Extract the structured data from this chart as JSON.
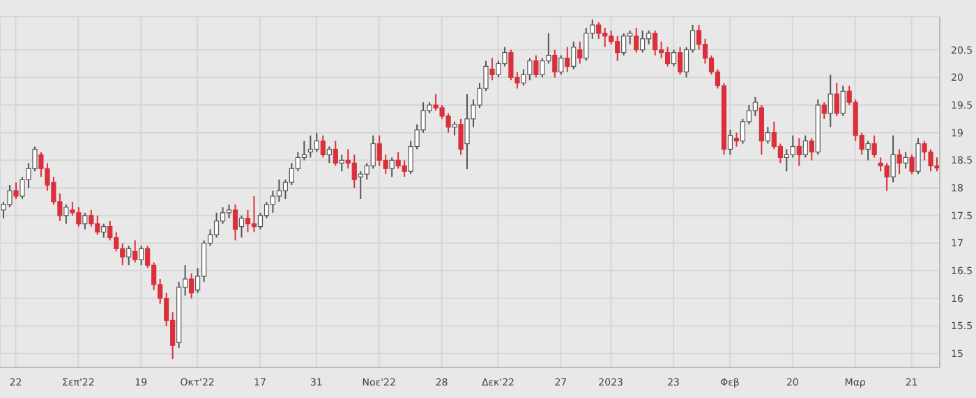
{
  "chart_data": {
    "type": "candlestick",
    "categories": [
      null,
      null,
      "22",
      null,
      null,
      null,
      null,
      null,
      null,
      null,
      null,
      null,
      "Σεπ'22",
      null,
      null,
      null,
      null,
      null,
      null,
      null,
      null,
      null,
      "19",
      null,
      null,
      null,
      null,
      null,
      null,
      null,
      null,
      "Οκτ'22",
      null,
      null,
      null,
      null,
      null,
      null,
      null,
      null,
      null,
      "17",
      null,
      null,
      null,
      null,
      null,
      null,
      null,
      null,
      "31",
      null,
      null,
      null,
      null,
      null,
      null,
      null,
      null,
      null,
      "Νοε'22",
      null,
      null,
      null,
      null,
      null,
      null,
      null,
      null,
      null,
      "28",
      null,
      null,
      null,
      null,
      null,
      null,
      null,
      null,
      "Δεκ'22",
      null,
      null,
      null,
      null,
      null,
      null,
      null,
      null,
      null,
      "27",
      null,
      null,
      null,
      null,
      null,
      null,
      null,
      "2023",
      null,
      null,
      null,
      null,
      null,
      null,
      null,
      null,
      null,
      "23",
      null,
      null,
      null,
      null,
      null,
      null,
      null,
      null,
      "Φεβ",
      null,
      null,
      null,
      null,
      null,
      null,
      null,
      null,
      null,
      "20",
      null,
      null,
      null,
      null,
      null,
      null,
      null,
      null,
      null,
      "Μαρ",
      null,
      null,
      null,
      null,
      null,
      null,
      null,
      null,
      "21",
      null,
      null,
      null,
      null
    ],
    "ohlc": [
      [
        17.6,
        17.75,
        17.45,
        17.7
      ],
      [
        17.7,
        18.05,
        17.65,
        17.95
      ],
      [
        17.95,
        18.1,
        17.8,
        17.85
      ],
      [
        17.85,
        18.2,
        17.8,
        18.15
      ],
      [
        18.15,
        18.45,
        18.0,
        18.35
      ],
      [
        18.35,
        18.75,
        18.3,
        18.7
      ],
      [
        18.6,
        18.65,
        18.2,
        18.35
      ],
      [
        18.35,
        18.45,
        17.95,
        18.05
      ],
      [
        18.1,
        18.2,
        17.7,
        17.75
      ],
      [
        17.75,
        17.9,
        17.4,
        17.5
      ],
      [
        17.5,
        17.7,
        17.35,
        17.65
      ],
      [
        17.6,
        17.75,
        17.5,
        17.55
      ],
      [
        17.55,
        17.65,
        17.3,
        17.35
      ],
      [
        17.35,
        17.55,
        17.25,
        17.5
      ],
      [
        17.5,
        17.6,
        17.3,
        17.35
      ],
      [
        17.35,
        17.5,
        17.15,
        17.2
      ],
      [
        17.2,
        17.35,
        17.1,
        17.3
      ],
      [
        17.3,
        17.4,
        17.05,
        17.1
      ],
      [
        17.1,
        17.2,
        16.85,
        16.9
      ],
      [
        16.9,
        17.0,
        16.6,
        16.75
      ],
      [
        16.75,
        16.95,
        16.6,
        16.9
      ],
      [
        16.85,
        17.05,
        16.65,
        16.7
      ],
      [
        16.7,
        16.95,
        16.6,
        16.9
      ],
      [
        16.9,
        16.95,
        16.55,
        16.6
      ],
      [
        16.6,
        16.65,
        16.15,
        16.25
      ],
      [
        16.25,
        16.35,
        15.9,
        16.0
      ],
      [
        16.0,
        16.1,
        15.5,
        15.6
      ],
      [
        15.6,
        15.75,
        14.9,
        15.15
      ],
      [
        15.2,
        16.3,
        15.1,
        16.2
      ],
      [
        16.2,
        16.6,
        16.05,
        16.35
      ],
      [
        16.35,
        16.45,
        16.0,
        16.1
      ],
      [
        16.15,
        16.55,
        16.1,
        16.4
      ],
      [
        16.4,
        17.05,
        16.3,
        17.0
      ],
      [
        17.0,
        17.25,
        16.95,
        17.15
      ],
      [
        17.15,
        17.55,
        17.1,
        17.4
      ],
      [
        17.4,
        17.65,
        17.35,
        17.55
      ],
      [
        17.55,
        17.7,
        17.45,
        17.6
      ],
      [
        17.6,
        17.7,
        17.05,
        17.25
      ],
      [
        17.3,
        17.5,
        17.1,
        17.45
      ],
      [
        17.45,
        17.6,
        17.2,
        17.35
      ],
      [
        17.35,
        17.85,
        17.2,
        17.3
      ],
      [
        17.3,
        17.55,
        17.25,
        17.5
      ],
      [
        17.5,
        17.75,
        17.45,
        17.7
      ],
      [
        17.7,
        17.95,
        17.55,
        17.85
      ],
      [
        17.85,
        18.15,
        17.75,
        17.95
      ],
      [
        17.95,
        18.15,
        17.8,
        18.1
      ],
      [
        18.1,
        18.45,
        18.05,
        18.35
      ],
      [
        18.35,
        18.65,
        18.3,
        18.55
      ],
      [
        18.55,
        18.85,
        18.5,
        18.6
      ],
      [
        18.65,
        18.95,
        18.55,
        18.7
      ],
      [
        18.7,
        19.0,
        18.65,
        18.85
      ],
      [
        18.85,
        18.95,
        18.55,
        18.6
      ],
      [
        18.6,
        18.75,
        18.45,
        18.7
      ],
      [
        18.7,
        18.85,
        18.4,
        18.45
      ],
      [
        18.45,
        18.6,
        18.3,
        18.5
      ],
      [
        18.5,
        18.7,
        18.35,
        18.45
      ],
      [
        18.45,
        18.6,
        18.0,
        18.15
      ],
      [
        18.2,
        18.3,
        17.8,
        18.25
      ],
      [
        18.25,
        18.45,
        18.15,
        18.4
      ],
      [
        18.4,
        18.95,
        18.35,
        18.8
      ],
      [
        18.8,
        18.95,
        18.4,
        18.5
      ],
      [
        18.5,
        18.6,
        18.25,
        18.35
      ],
      [
        18.35,
        18.55,
        18.2,
        18.5
      ],
      [
        18.5,
        18.65,
        18.35,
        18.4
      ],
      [
        18.4,
        18.5,
        18.2,
        18.3
      ],
      [
        18.3,
        18.85,
        18.25,
        18.75
      ],
      [
        18.75,
        19.15,
        18.7,
        19.05
      ],
      [
        19.05,
        19.55,
        19.0,
        19.4
      ],
      [
        19.4,
        19.55,
        19.35,
        19.5
      ],
      [
        19.5,
        19.7,
        19.4,
        19.45
      ],
      [
        19.45,
        19.5,
        19.25,
        19.3
      ],
      [
        19.3,
        19.35,
        19.0,
        19.1
      ],
      [
        19.1,
        19.2,
        18.95,
        19.15
      ],
      [
        19.15,
        19.25,
        18.6,
        18.7
      ],
      [
        18.8,
        19.7,
        18.34,
        19.25
      ],
      [
        19.25,
        19.6,
        19.1,
        19.5
      ],
      [
        19.5,
        19.9,
        19.45,
        19.8
      ],
      [
        19.8,
        20.3,
        19.75,
        20.2
      ],
      [
        20.15,
        20.35,
        19.95,
        20.05
      ],
      [
        20.05,
        20.3,
        20.0,
        20.25
      ],
      [
        20.25,
        20.55,
        20.2,
        20.45
      ],
      [
        20.45,
        20.5,
        19.95,
        20.0
      ],
      [
        20.0,
        20.1,
        19.8,
        19.9
      ],
      [
        19.9,
        20.15,
        19.85,
        20.05
      ],
      [
        20.05,
        20.35,
        19.95,
        20.3
      ],
      [
        20.3,
        20.4,
        20.0,
        20.05
      ],
      [
        20.05,
        20.35,
        20.0,
        20.3
      ],
      [
        20.3,
        20.8,
        20.25,
        20.4
      ],
      [
        20.4,
        20.5,
        20.0,
        20.1
      ],
      [
        20.1,
        20.4,
        20.05,
        20.35
      ],
      [
        20.35,
        20.55,
        20.1,
        20.2
      ],
      [
        20.2,
        20.65,
        20.15,
        20.55
      ],
      [
        20.5,
        20.65,
        20.25,
        20.35
      ],
      [
        20.35,
        20.9,
        20.3,
        20.8
      ],
      [
        20.8,
        21.05,
        20.7,
        20.95
      ],
      [
        20.95,
        21.0,
        20.7,
        20.8
      ],
      [
        20.8,
        20.9,
        20.55,
        20.75
      ],
      [
        20.75,
        20.85,
        20.6,
        20.65
      ],
      [
        20.65,
        20.75,
        20.3,
        20.45
      ],
      [
        20.45,
        20.8,
        20.4,
        20.75
      ],
      [
        20.75,
        20.85,
        20.6,
        20.8
      ],
      [
        20.75,
        20.9,
        20.45,
        20.5
      ],
      [
        20.5,
        20.85,
        20.45,
        20.7
      ],
      [
        20.7,
        20.85,
        20.6,
        20.8
      ],
      [
        20.8,
        20.85,
        20.4,
        20.5
      ],
      [
        20.5,
        20.65,
        20.35,
        20.45
      ],
      [
        20.45,
        20.55,
        20.2,
        20.25
      ],
      [
        20.25,
        20.5,
        20.2,
        20.45
      ],
      [
        20.45,
        20.55,
        20.05,
        20.1
      ],
      [
        20.1,
        20.55,
        20.0,
        20.5
      ],
      [
        20.5,
        20.95,
        20.45,
        20.85
      ],
      [
        20.85,
        20.95,
        20.5,
        20.6
      ],
      [
        20.6,
        20.7,
        20.25,
        20.35
      ],
      [
        20.35,
        20.4,
        20.05,
        20.1
      ],
      [
        20.1,
        20.15,
        19.8,
        19.85
      ],
      [
        19.85,
        19.9,
        18.6,
        18.7
      ],
      [
        18.7,
        19.05,
        18.6,
        18.95
      ],
      [
        18.9,
        19.0,
        18.75,
        18.85
      ],
      [
        18.85,
        19.25,
        18.8,
        19.2
      ],
      [
        19.2,
        19.5,
        19.15,
        19.4
      ],
      [
        19.4,
        19.65,
        19.3,
        19.55
      ],
      [
        19.45,
        19.5,
        18.6,
        18.85
      ],
      [
        18.85,
        19.1,
        18.8,
        19.0
      ],
      [
        19.0,
        19.2,
        18.7,
        18.75
      ],
      [
        18.75,
        18.8,
        18.45,
        18.55
      ],
      [
        18.55,
        18.7,
        18.3,
        18.6
      ],
      [
        18.6,
        18.95,
        18.55,
        18.75
      ],
      [
        18.75,
        18.9,
        18.4,
        18.6
      ],
      [
        18.6,
        18.95,
        18.55,
        18.85
      ],
      [
        18.85,
        18.9,
        18.5,
        18.65
      ],
      [
        18.65,
        19.6,
        18.6,
        19.5
      ],
      [
        19.5,
        19.55,
        19.25,
        19.35
      ],
      [
        19.35,
        20.05,
        19.1,
        19.7
      ],
      [
        19.7,
        19.9,
        19.3,
        19.35
      ],
      [
        19.35,
        19.85,
        19.3,
        19.75
      ],
      [
        19.75,
        19.85,
        19.5,
        19.55
      ],
      [
        19.55,
        19.6,
        18.85,
        18.95
      ],
      [
        18.95,
        19.0,
        18.6,
        18.7
      ],
      [
        18.7,
        18.85,
        18.5,
        18.8
      ],
      [
        18.8,
        18.95,
        18.55,
        18.6
      ],
      [
        18.45,
        18.55,
        18.3,
        18.4
      ],
      [
        18.4,
        18.45,
        17.95,
        18.2
      ],
      [
        18.2,
        18.95,
        18.1,
        18.6
      ],
      [
        18.6,
        18.7,
        18.25,
        18.45
      ],
      [
        18.45,
        18.65,
        18.35,
        18.55
      ],
      [
        18.55,
        18.6,
        18.25,
        18.3
      ],
      [
        18.3,
        18.9,
        18.25,
        18.8
      ],
      [
        18.8,
        18.85,
        18.5,
        18.65
      ],
      [
        18.65,
        18.7,
        18.3,
        18.4
      ],
      [
        18.4,
        18.55,
        18.3,
        18.36
      ]
    ],
    "ylim": [
      14.75,
      21.1
    ],
    "yticks": [
      15,
      15.5,
      16,
      16.5,
      17,
      17.5,
      18,
      18.5,
      19,
      19.5,
      20,
      20.5
    ],
    "grid": true
  }
}
